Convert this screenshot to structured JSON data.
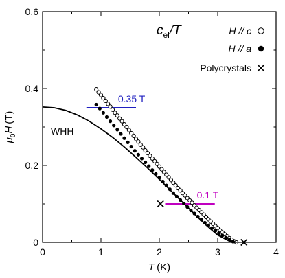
{
  "chart_data": {
    "type": "scatter",
    "xlim": [
      0,
      4
    ],
    "ylim": [
      0,
      0.6
    ],
    "x_ticks": [
      "0",
      "1",
      "2",
      "3",
      "4"
    ],
    "y_ticks": [
      "0",
      "0.2",
      "0.4",
      "0.6"
    ],
    "xlabel": {
      "symbol": "T",
      "unit": "(K)"
    },
    "ylabel": {
      "symbol_mu": "μ",
      "sub": "0",
      "symbol_h": "H",
      "unit": "(T)"
    },
    "grid": false,
    "legend": {
      "placement": "top-right",
      "header_main": "c",
      "header_sub": "el",
      "header_tail": "/T",
      "entries": [
        {
          "label": "H // c",
          "marker": "open-circle"
        },
        {
          "label": "H // a",
          "marker": "filled-circle"
        },
        {
          "label": "Polycrystals",
          "marker": "cross"
        }
      ]
    },
    "series": [
      {
        "marker": "open-circle",
        "x": [
          0.92,
          0.96,
          1.0,
          1.04,
          1.08,
          1.12,
          1.16,
          1.2,
          1.24,
          1.28,
          1.32,
          1.36,
          1.4,
          1.44,
          1.48,
          1.52,
          1.56,
          1.6,
          1.64,
          1.68,
          1.72,
          1.76,
          1.8,
          1.84,
          1.88,
          1.92,
          1.96,
          2.0,
          2.04,
          2.08,
          2.12,
          2.16,
          2.2,
          2.24,
          2.28,
          2.32,
          2.36,
          2.4,
          2.44,
          2.48,
          2.52,
          2.56,
          2.6,
          2.64,
          2.68,
          2.72,
          2.76,
          2.8,
          2.84,
          2.88,
          2.92,
          2.96,
          3.0,
          3.04,
          3.08,
          3.12,
          3.16,
          3.2,
          3.24,
          3.28,
          3.32
        ],
        "y": [
          0.398,
          0.39,
          0.383,
          0.375,
          0.368,
          0.36,
          0.353,
          0.345,
          0.337,
          0.33,
          0.322,
          0.315,
          0.307,
          0.3,
          0.292,
          0.284,
          0.277,
          0.269,
          0.262,
          0.254,
          0.247,
          0.239,
          0.232,
          0.225,
          0.218,
          0.211,
          0.204,
          0.197,
          0.19,
          0.183,
          0.176,
          0.169,
          0.162,
          0.155,
          0.148,
          0.141,
          0.135,
          0.128,
          0.122,
          0.115,
          0.109,
          0.103,
          0.096,
          0.09,
          0.084,
          0.078,
          0.072,
          0.066,
          0.06,
          0.054,
          0.048,
          0.042,
          0.037,
          0.031,
          0.026,
          0.021,
          0.016,
          0.011,
          0.007,
          0.003,
          0.0
        ]
      },
      {
        "marker": "filled-circle",
        "x": [
          0.92,
          0.98,
          1.04,
          1.1,
          1.16,
          1.22,
          1.28,
          1.34,
          1.4,
          1.46,
          1.52,
          1.58,
          1.64,
          1.7,
          1.76,
          1.82,
          1.88,
          1.94,
          2.0,
          2.06,
          2.12,
          2.18,
          2.24,
          2.3,
          2.36,
          2.42,
          2.48,
          2.54,
          2.6,
          2.66,
          2.72,
          2.78,
          2.84,
          2.9,
          2.96,
          3.02,
          3.08,
          3.14,
          3.2,
          3.26
        ],
        "y": [
          0.358,
          0.348,
          0.337,
          0.326,
          0.315,
          0.304,
          0.293,
          0.282,
          0.271,
          0.26,
          0.249,
          0.238,
          0.228,
          0.218,
          0.208,
          0.198,
          0.188,
          0.178,
          0.168,
          0.158,
          0.148,
          0.138,
          0.128,
          0.119,
          0.11,
          0.101,
          0.092,
          0.083,
          0.075,
          0.067,
          0.059,
          0.051,
          0.044,
          0.037,
          0.03,
          0.024,
          0.018,
          0.012,
          0.007,
          0.002
        ]
      },
      {
        "marker": "cross",
        "x": [
          2.02,
          3.45
        ],
        "y": [
          0.1,
          0.0
        ]
      }
    ],
    "curve": {
      "label": "WHH",
      "x": [
        0.0,
        0.2,
        0.4,
        0.6,
        0.8,
        1.0,
        1.2,
        1.4,
        1.6,
        1.8,
        2.0,
        2.2,
        2.4,
        2.6,
        2.8,
        3.0,
        3.2,
        3.3
      ],
      "y": [
        0.352,
        0.35,
        0.343,
        0.331,
        0.315,
        0.295,
        0.273,
        0.248,
        0.221,
        0.193,
        0.164,
        0.134,
        0.104,
        0.074,
        0.045,
        0.019,
        0.003,
        0.0
      ]
    },
    "annotations": [
      {
        "label": "0.35 T",
        "value": 0.35,
        "x_range": [
          0.75,
          1.6
        ],
        "color": "#2020c0"
      },
      {
        "label": "0.1 T",
        "value": 0.1,
        "x_range": [
          2.1,
          2.95
        ],
        "color": "#c000c0"
      }
    ]
  }
}
